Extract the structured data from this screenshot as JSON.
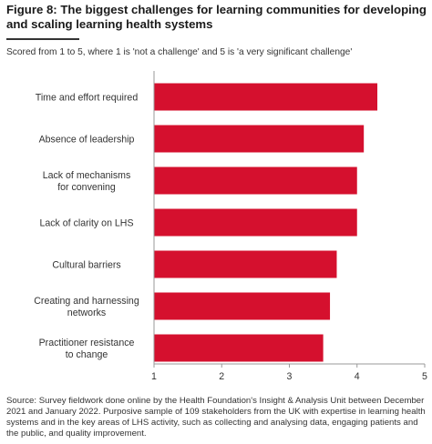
{
  "title": "Figure 8: The biggest challenges for learning communities for developing and scaling learning health systems",
  "subtitle": "Scored from 1 to 5, where 1 is 'not a challenge' and 5 is 'a very significant challenge'",
  "source": "Source: Survey fieldwork done online by the Health Foundation's Insight & Analysis Unit between December 2021 and January 2022. Purposive sample of 109 stakeholders from the UK with expertise in learning health systems and in the key areas of LHS activity, such as collecting and analysing data, engaging patients and the public, and quality improvement.",
  "colors": {
    "bar": "#d5102e",
    "axis": "#999999",
    "grid": "#cccccc"
  },
  "chart_data": {
    "type": "bar",
    "orientation": "horizontal",
    "categories": [
      [
        "Time and effort required"
      ],
      [
        "Absence of leadership"
      ],
      [
        "Lack of mechanisms",
        "for convening"
      ],
      [
        "Lack of clarity on LHS"
      ],
      [
        "Cultural barriers"
      ],
      [
        "Creating and harnessing",
        "networks"
      ],
      [
        "Practitioner resistance",
        "to change"
      ]
    ],
    "values": [
      4.3,
      4.1,
      4.0,
      4.0,
      3.7,
      3.6,
      3.5
    ],
    "xlim": [
      1,
      5
    ],
    "xticks": [
      "1",
      "2",
      "3",
      "4",
      "5"
    ],
    "grid": false,
    "legend": "none"
  }
}
